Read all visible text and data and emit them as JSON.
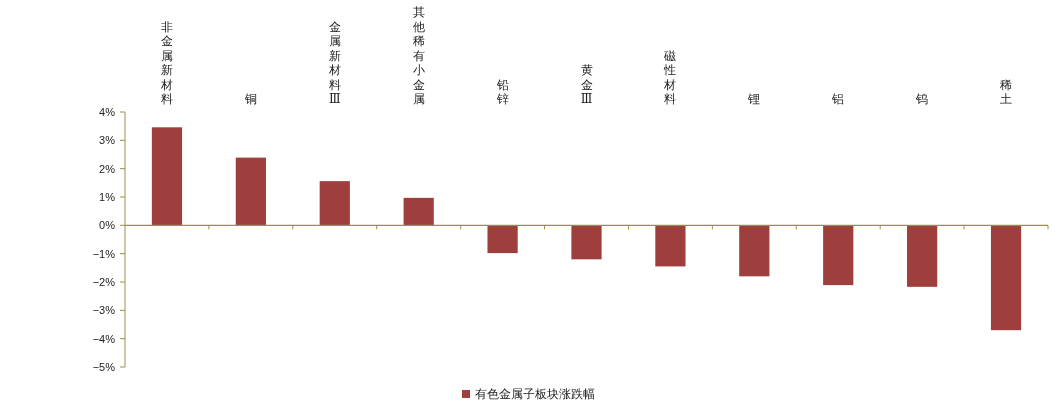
{
  "chart_data": {
    "type": "bar",
    "categories": [
      "非金属新材料",
      "铜",
      "金属新材料Ⅲ",
      "其他稀有小金属",
      "铅锌",
      "黄金Ⅲ",
      "磁性材料",
      "锂",
      "铝",
      "钨",
      "稀土"
    ],
    "series": [
      {
        "name": "有色金属子板块涨跌幅",
        "color": "#9e3f3d",
        "values": [
          3.46,
          2.39,
          1.56,
          0.97,
          -0.98,
          -1.2,
          -1.45,
          -1.8,
          -2.11,
          -2.17,
          -3.7
        ]
      }
    ],
    "ylim": [
      -5,
      4
    ],
    "yticks": [
      {
        "value": 4,
        "label": "4%"
      },
      {
        "value": 3,
        "label": "3%"
      },
      {
        "value": 2,
        "label": "2%"
      },
      {
        "value": 1,
        "label": "1%"
      },
      {
        "value": 0,
        "label": "0%"
      },
      {
        "value": -1,
        "label": "−1%"
      },
      {
        "value": -2,
        "label": "−2%"
      },
      {
        "value": -3,
        "label": "−3%"
      },
      {
        "value": -4,
        "label": "−4%"
      },
      {
        "value": -5,
        "label": "−5%"
      }
    ],
    "ref_lines": [
      {
        "axis": "y",
        "value": 0,
        "color": "#9a8f4a"
      }
    ],
    "grid": false,
    "legend": "bottom"
  }
}
